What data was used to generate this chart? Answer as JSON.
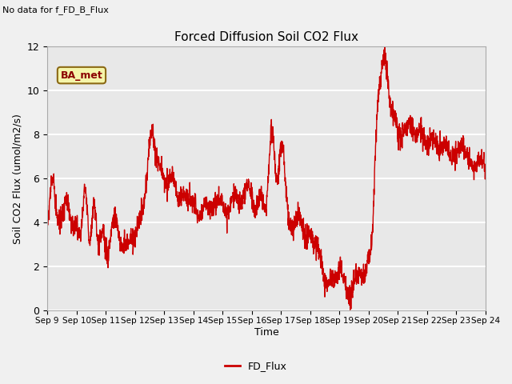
{
  "title": "Forced Diffusion Soil CO2 Flux",
  "xlabel": "Time",
  "ylabel_text": "Soil CO2 Flux (umol/m2/s)",
  "top_left_text": "No data for f_FD_B_Flux",
  "annotation_text": "BA_met",
  "line_color": "#cc0000",
  "line_width": 1.0,
  "legend_label": "FD_Flux",
  "ylim": [
    0,
    12
  ],
  "yticks": [
    0,
    2,
    4,
    6,
    8,
    10,
    12
  ],
  "xtick_labels": [
    "Sep 9",
    "Sep 10",
    "Sep 11",
    "Sep 12",
    "Sep 13",
    "Sep 14",
    "Sep 15",
    "Sep 16",
    "Sep 17",
    "Sep 18",
    "Sep 19",
    "Sep 20",
    "Sep 21",
    "Sep 22",
    "Sep 23",
    "Sep 24"
  ],
  "n_days": 15,
  "bg_color": "#e8e8e8",
  "grid_color": "#ffffff",
  "annotation_bg": "#f5f5aa",
  "annotation_border": "#8b6914",
  "fig_bg": "#f0f0f0",
  "key_t": [
    0.0,
    0.08,
    0.18,
    0.3,
    0.42,
    0.55,
    0.65,
    0.75,
    0.88,
    1.0,
    1.15,
    1.3,
    1.45,
    1.6,
    1.75,
    1.9,
    2.0,
    2.15,
    2.3,
    2.5,
    2.7,
    2.85,
    3.0,
    3.15,
    3.35,
    3.55,
    3.75,
    3.9,
    4.0,
    4.15,
    4.3,
    4.5,
    4.65,
    4.8,
    5.0,
    5.2,
    5.4,
    5.6,
    5.8,
    6.0,
    6.2,
    6.4,
    6.6,
    6.8,
    7.0,
    7.15,
    7.3,
    7.5,
    7.7,
    7.85,
    8.0,
    8.2,
    8.4,
    8.6,
    8.8,
    9.0,
    9.15,
    9.3,
    9.5,
    9.65,
    9.8,
    9.92,
    10.0,
    10.1,
    10.2,
    10.35,
    10.5,
    10.65,
    10.8,
    10.92,
    11.0,
    11.12,
    11.25,
    11.4,
    11.55,
    11.7,
    11.85,
    12.0,
    12.2,
    12.4,
    12.6,
    12.8,
    13.0,
    13.2,
    13.4,
    13.6,
    13.8,
    14.0,
    14.2,
    14.4,
    14.6,
    14.8,
    15.0
  ],
  "key_y": [
    3.9,
    5.0,
    6.1,
    4.7,
    4.0,
    4.7,
    5.0,
    4.5,
    3.8,
    4.0,
    3.5,
    5.6,
    3.2,
    4.8,
    3.0,
    3.5,
    2.6,
    3.2,
    4.2,
    3.1,
    3.0,
    3.2,
    3.3,
    4.2,
    5.2,
    8.0,
    6.8,
    6.5,
    6.0,
    5.8,
    6.0,
    5.0,
    5.2,
    5.0,
    5.0,
    4.2,
    4.8,
    4.5,
    5.0,
    4.8,
    4.5,
    5.3,
    4.8,
    5.5,
    5.2,
    4.5,
    5.3,
    4.8,
    8.3,
    5.8,
    7.5,
    5.0,
    3.8,
    4.4,
    3.4,
    3.5,
    3.0,
    2.7,
    1.3,
    1.5,
    1.4,
    1.7,
    2.0,
    1.5,
    1.2,
    0.5,
    1.4,
    1.6,
    1.5,
    1.8,
    2.3,
    3.5,
    7.8,
    10.5,
    11.5,
    9.8,
    9.0,
    8.2,
    8.1,
    8.5,
    8.0,
    8.2,
    7.5,
    7.8,
    7.3,
    7.5,
    7.0,
    7.2,
    7.5,
    7.0,
    6.5,
    6.8,
    6.2
  ]
}
